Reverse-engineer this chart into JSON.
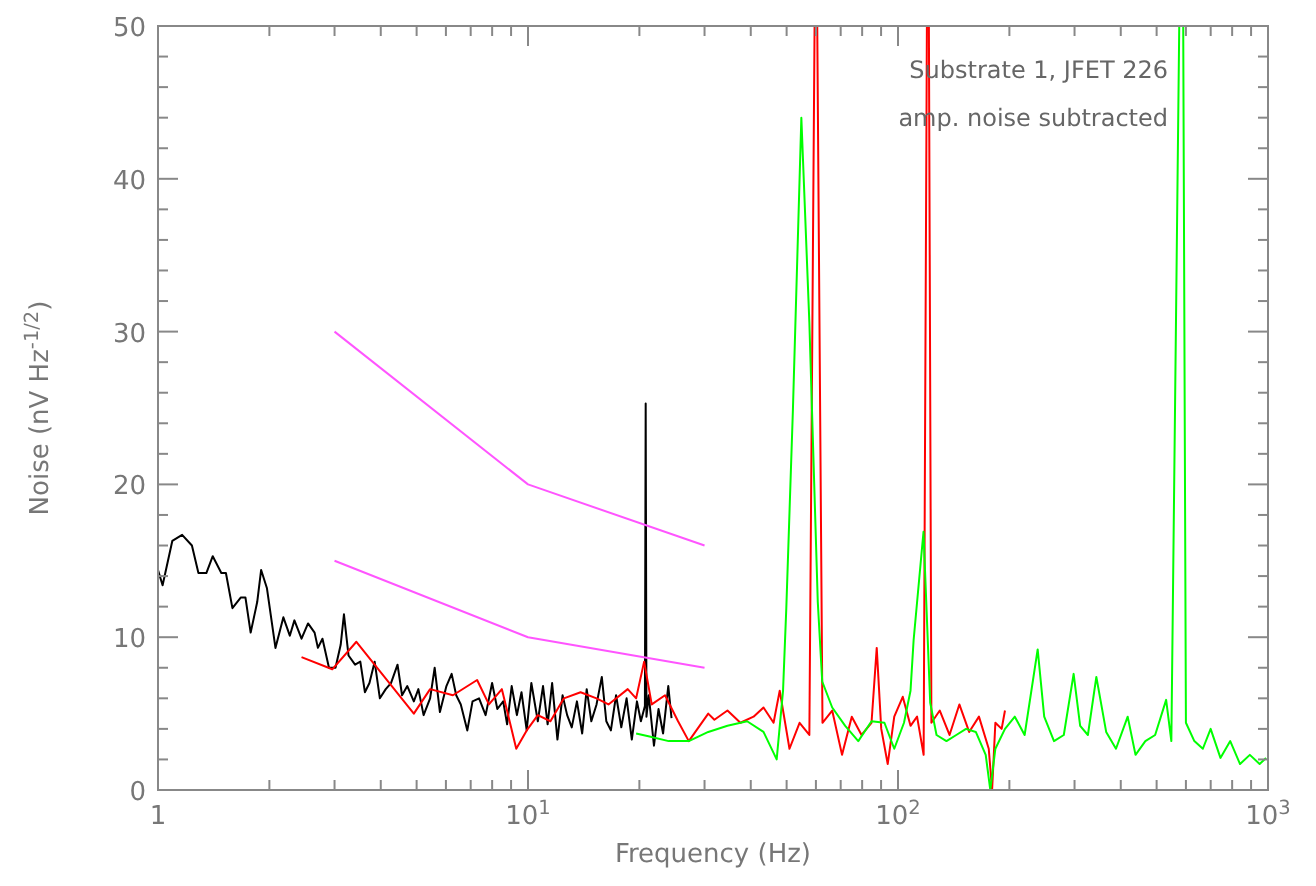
{
  "chart_data": {
    "type": "line",
    "xlabel": "Frequency (Hz)",
    "ylabel": "Noise (nV Hz$^{-1/2}$)",
    "log": "x",
    "xlim": [
      1,
      1000
    ],
    "ylim": [
      0,
      50
    ],
    "xticks": [
      {
        "value": 1,
        "label": "1"
      },
      {
        "value": 2,
        "label": null
      },
      {
        "value": 3,
        "label": null
      },
      {
        "value": 4,
        "label": null
      },
      {
        "value": 5,
        "label": null
      },
      {
        "value": 6,
        "label": null
      },
      {
        "value": 7,
        "label": null
      },
      {
        "value": 8,
        "label": null
      },
      {
        "value": 9,
        "label": null
      },
      {
        "value": 10,
        "label": "10$^{1}$"
      },
      {
        "value": 20,
        "label": null
      },
      {
        "value": 30,
        "label": null
      },
      {
        "value": 40,
        "label": null
      },
      {
        "value": 50,
        "label": null
      },
      {
        "value": 60,
        "label": null
      },
      {
        "value": 70,
        "label": null
      },
      {
        "value": 80,
        "label": null
      },
      {
        "value": 90,
        "label": null
      },
      {
        "value": 100,
        "label": "10$^{2}$"
      },
      {
        "value": 200,
        "label": null
      },
      {
        "value": 300,
        "label": null
      },
      {
        "value": 400,
        "label": null
      },
      {
        "value": 500,
        "label": null
      },
      {
        "value": 600,
        "label": null
      },
      {
        "value": 700,
        "label": null
      },
      {
        "value": 800,
        "label": null
      },
      {
        "value": 900,
        "label": null
      },
      {
        "value": 1000,
        "label": "10$^{3}$"
      }
    ],
    "yticks": [
      0,
      {
        "value": 2,
        "label": null
      },
      {
        "value": 4,
        "label": null
      },
      {
        "value": 6,
        "label": null
      },
      {
        "value": 8,
        "label": null
      },
      10,
      {
        "value": 12,
        "label": null
      },
      {
        "value": 14,
        "label": null
      },
      {
        "value": 16,
        "label": null
      },
      {
        "value": 18,
        "label": null
      },
      20,
      {
        "value": 22,
        "label": null
      },
      {
        "value": 24,
        "label": null
      },
      {
        "value": 26,
        "label": null
      },
      {
        "value": 28,
        "label": null
      },
      30,
      {
        "value": 32,
        "label": null
      },
      {
        "value": 34,
        "label": null
      },
      {
        "value": 36,
        "label": null
      },
      {
        "value": 38,
        "label": null
      },
      40,
      {
        "value": 42,
        "label": null
      },
      {
        "value": 44,
        "label": null
      },
      {
        "value": 46,
        "label": null
      },
      {
        "value": 48,
        "label": null
      },
      50
    ],
    "grid": false,
    "marker": "none",
    "line_style": "solid",
    "annotations": [
      "Substrate 1, JFET 226",
      "amp. noise subtracted"
    ],
    "series": [
      {
        "color": "#000000",
        "x": [
          1,
          1.029,
          1.093,
          1.162,
          1.235,
          1.286,
          1.351,
          1.406,
          1.483,
          1.526,
          1.589,
          1.675,
          1.723,
          1.78,
          1.854,
          1.9,
          1.97,
          2.077,
          2.182,
          2.271,
          2.337,
          2.443,
          2.544,
          2.65,
          2.705,
          2.783,
          2.898,
          3.018,
          3.117,
          3.181,
          3.273,
          3.409,
          3.522,
          3.624,
          3.728,
          3.851,
          3.978,
          4.126,
          4.263,
          4.44,
          4.567,
          4.718,
          4.914,
          5.055,
          5.222,
          5.438,
          5.595,
          5.78,
          6.019,
          6.218,
          6.397,
          6.582,
          6.855,
          7.081,
          7.375,
          7.681,
          7.998,
          8.263,
          8.57,
          8.781,
          9.035,
          9.333,
          9.603,
          9.92,
          10.21,
          10.63,
          10.98,
          11.3,
          11.62,
          12.01,
          12.4,
          12.76,
          13.13,
          13.56,
          14.01,
          14.41,
          14.83,
          15.32,
          15.83,
          16.28,
          16.75,
          17.3,
          17.87,
          18.47,
          19.08,
          19.7,
          20.19,
          20.7,
          20.8,
          20.9,
          21.2,
          21.9,
          22.53,
          23.18,
          23.94,
          24.43
        ],
        "values": [
          14.4,
          13.4,
          16.3,
          16.7,
          16,
          14.2,
          14.2,
          15.3,
          14.2,
          14.2,
          11.9,
          12.6,
          12.6,
          10.3,
          12.3,
          14.4,
          13.2,
          9.3,
          11.3,
          10.1,
          11.1,
          9.9,
          10.9,
          10.3,
          9.3,
          9.9,
          8,
          8,
          9.5,
          11.5,
          8.8,
          8.2,
          8.4,
          6.4,
          7,
          8.4,
          6,
          6.6,
          7,
          8.2,
          6.2,
          6.8,
          5.8,
          6.6,
          4.9,
          6,
          8,
          5.1,
          6.8,
          7.6,
          6.2,
          5.6,
          3.9,
          5.8,
          6,
          4.9,
          7,
          5.3,
          5.8,
          4.3,
          6.8,
          4.9,
          6.4,
          3.9,
          7,
          4.5,
          6.8,
          4.3,
          7,
          3.3,
          6.2,
          4.9,
          4.1,
          5.8,
          3.7,
          6.6,
          4.5,
          5.6,
          7.4,
          4.5,
          3.9,
          6.2,
          4.1,
          6,
          3.3,
          5.8,
          4.5,
          5.5,
          25.3,
          4.8,
          6.2,
          2.9,
          5.3,
          3.7,
          6.8,
          4.7
        ]
      },
      {
        "color": "#ff0000",
        "x": [
          2.443,
          2.958,
          3.437,
          4.914,
          5.438,
          6.268,
          7.286,
          7.841,
          8.5,
          9.295,
          9.92,
          10.63,
          11.5,
          12.5,
          13.87,
          15.32,
          16.5,
          18.6,
          19.6,
          20.6,
          21.6,
          23.46,
          25.44,
          27.2,
          30.7,
          31.9,
          34.6,
          37.5,
          40.7,
          43.3,
          46.1,
          47.9,
          50.9,
          54.2,
          57.6,
          59.5,
          60.5,
          62.5,
          66.4,
          70.6,
          75,
          79.7,
          84.8,
          87.6,
          90.1,
          93.8,
          97.7,
          103,
          108.1,
          112.6,
          117.3,
          119.7,
          121.2,
          123.1,
          129.7,
          137.8,
          146.5,
          155.7,
          165.5,
          175.9,
          179.6,
          183.3,
          190.6,
          194.6
        ],
        "values": [
          8.7,
          7.9,
          9.7,
          5,
          6.6,
          6.2,
          7.2,
          5.6,
          6.6,
          2.7,
          3.9,
          4.9,
          4.5,
          6,
          6.4,
          6,
          5.6,
          6.6,
          6,
          8.4,
          5.6,
          6.2,
          4.5,
          3.2,
          5,
          4.6,
          5.2,
          4.4,
          4.8,
          5.4,
          4.4,
          6.5,
          2.7,
          4.4,
          3.6,
          50,
          50,
          4.4,
          5.2,
          2.3,
          4.8,
          3.6,
          4.4,
          9.3,
          4,
          1.7,
          4.8,
          6.1,
          4.2,
          4.8,
          2.3,
          50,
          50,
          4.4,
          5.2,
          3.6,
          5.6,
          3.8,
          4.8,
          2.7,
          0,
          4.4,
          4,
          5.2
        ]
      },
      {
        "color": "#00ff00",
        "x": [
          19.6,
          21.3,
          24,
          27.2,
          30.7,
          34.6,
          39.1,
          43.3,
          47,
          48.9,
          49.9,
          52,
          54.8,
          57.6,
          60.7,
          62.4,
          66.4,
          72,
          78.1,
          84.8,
          91.9,
          97.7,
          103.8,
          108.1,
          110.2,
          117.2,
          122.2,
          127.1,
          135.2,
          143.7,
          152.7,
          162.3,
          172.6,
          177.6,
          183.3,
          194.6,
          206.9,
          219.9,
          238.5,
          248.4,
          264,
          280.6,
          298.3,
          310.7,
          326,
          343.6,
          365.3,
          388.3,
          417.6,
          438.5,
          466.1,
          495.4,
          530.5,
          548,
          575.6,
          590,
          600,
          632.3,
          666.7,
          699.8,
          743.8,
          790.6,
          840.3,
          893.1,
          949.3,
          988
        ],
        "values": [
          3.7,
          3.5,
          3.2,
          3.2,
          3.8,
          4.2,
          4.5,
          3.8,
          2,
          6.5,
          11.9,
          24.9,
          44,
          30.6,
          12.3,
          7.1,
          5.4,
          4.2,
          3.2,
          4.5,
          4.4,
          2.7,
          4.4,
          6.5,
          9.8,
          16.9,
          5.7,
          3.6,
          3.2,
          3.6,
          4,
          3.8,
          2.3,
          0,
          2.7,
          4,
          4.8,
          3.6,
          9.2,
          4.8,
          3.2,
          3.6,
          7.6,
          4.2,
          3.6,
          7.4,
          3.8,
          2.7,
          4.8,
          2.3,
          3.2,
          3.6,
          5.9,
          3.2,
          50,
          50,
          4.4,
          3.2,
          2.7,
          4,
          2.1,
          3.2,
          1.7,
          2.3,
          1.7,
          2.1
        ]
      },
      {
        "color": "#ff55ff",
        "x": [
          3,
          10,
          30
        ],
        "values": [
          30,
          20,
          16
        ]
      },
      {
        "color": "#ff55ff",
        "x": [
          3,
          10,
          30
        ],
        "values": [
          15,
          10,
          8
        ]
      }
    ]
  }
}
